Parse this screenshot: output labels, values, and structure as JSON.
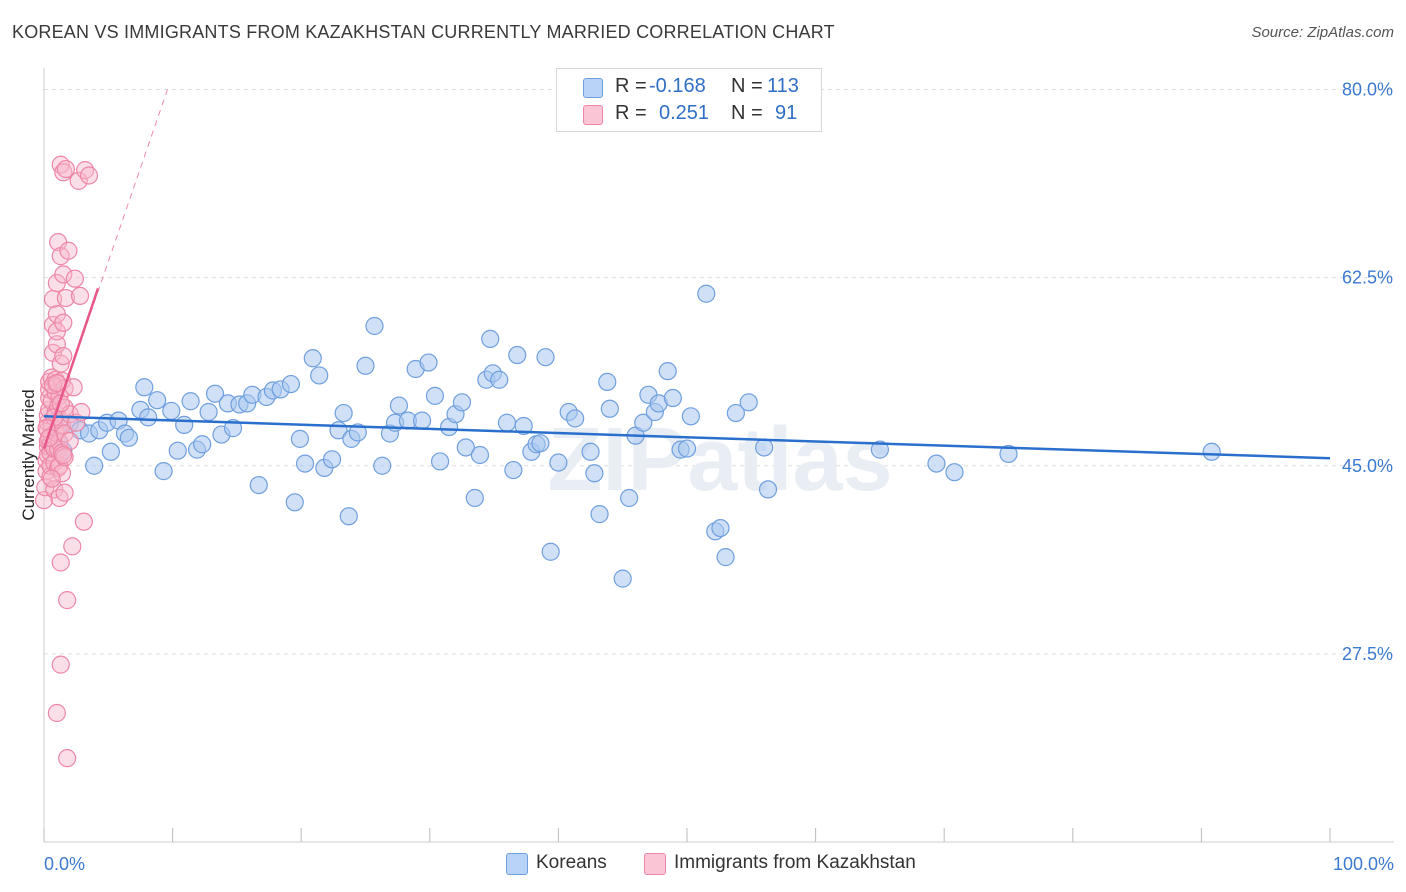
{
  "header": {
    "title": "KOREAN VS IMMIGRANTS FROM KAZAKHSTAN CURRENTLY MARRIED CORRELATION CHART",
    "source": "Source: ZipAtlas.com"
  },
  "watermark": "ZIPatlas",
  "legend": {
    "row1": {
      "r_label": "R =",
      "r_value": "-0.168",
      "n_label": "N =",
      "n_value": "113"
    },
    "row2": {
      "r_label": "R =",
      "r_value": "0.251",
      "n_label": "N =",
      "n_value": "91"
    }
  },
  "bottom_legend": {
    "series1": "Koreans",
    "series2": "Immigrants from Kazakhstan"
  },
  "colors": {
    "blue_fill": "#a9c8f0",
    "blue_stroke": "#6f9fde",
    "blue_line": "#2a6fcc",
    "pink_fill": "#f7b9cc",
    "pink_stroke": "#ee86a6",
    "pink_line": "#e8578a",
    "tick_label": "#3c7ad0",
    "grid": "#dddddd"
  },
  "chart_data": {
    "type": "scatter",
    "title": "KOREAN VS IMMIGRANTS FROM KAZAKHSTAN CURRENTLY MARRIED CORRELATION CHART",
    "xlabel": "",
    "ylabel": "Currently Married",
    "xlim": [
      0,
      100
    ],
    "ylim": [
      10,
      82
    ],
    "x_tick_labels": [
      "0.0%",
      "100.0%"
    ],
    "y_ticks": [
      27.5,
      45.0,
      62.5,
      80.0
    ],
    "y_tick_labels": [
      "27.5%",
      "45.0%",
      "62.5%",
      "80.0%"
    ],
    "grid": true,
    "legend_position": "top-center",
    "series": [
      {
        "name": "Koreans",
        "color": "#a9c8f0",
        "r": -0.168,
        "n": 113,
        "trend": {
          "x": [
            0,
            100
          ],
          "y": [
            49.6,
            45.7
          ],
          "style": "solid"
        },
        "points": [
          [
            0.8,
            46.9
          ],
          [
            1.0,
            46.6
          ],
          [
            1.2,
            47.1
          ],
          [
            1.5,
            46.4
          ],
          [
            2.0,
            48.9
          ],
          [
            2.8,
            48.3
          ],
          [
            3.5,
            48.0
          ],
          [
            3.9,
            45.0
          ],
          [
            4.3,
            48.3
          ],
          [
            4.9,
            49.0
          ],
          [
            5.2,
            46.3
          ],
          [
            5.8,
            49.2
          ],
          [
            6.3,
            48.0
          ],
          [
            6.6,
            47.6
          ],
          [
            7.5,
            50.2
          ],
          [
            7.8,
            52.3
          ],
          [
            8.1,
            49.5
          ],
          [
            8.8,
            51.1
          ],
          [
            9.3,
            44.5
          ],
          [
            9.9,
            50.1
          ],
          [
            10.4,
            46.4
          ],
          [
            10.9,
            48.8
          ],
          [
            11.4,
            51.0
          ],
          [
            11.9,
            46.5
          ],
          [
            12.3,
            47.0
          ],
          [
            12.8,
            50.0
          ],
          [
            13.3,
            51.7
          ],
          [
            13.8,
            47.9
          ],
          [
            14.3,
            50.8
          ],
          [
            14.7,
            48.5
          ],
          [
            15.2,
            50.7
          ],
          [
            15.8,
            50.8
          ],
          [
            16.2,
            51.6
          ],
          [
            16.7,
            43.2
          ],
          [
            17.3,
            51.4
          ],
          [
            17.8,
            52.0
          ],
          [
            18.4,
            52.1
          ],
          [
            19.2,
            52.6
          ],
          [
            19.5,
            41.6
          ],
          [
            19.9,
            47.5
          ],
          [
            20.3,
            45.2
          ],
          [
            20.9,
            55.0
          ],
          [
            21.4,
            53.4
          ],
          [
            21.8,
            44.8
          ],
          [
            22.4,
            45.6
          ],
          [
            22.9,
            48.3
          ],
          [
            23.3,
            49.9
          ],
          [
            23.7,
            40.3
          ],
          [
            23.9,
            47.5
          ],
          [
            24.4,
            48.1
          ],
          [
            25.0,
            54.3
          ],
          [
            25.7,
            58.0
          ],
          [
            26.3,
            45.0
          ],
          [
            26.9,
            48.0
          ],
          [
            27.3,
            49.0
          ],
          [
            27.6,
            50.6
          ],
          [
            28.3,
            49.2
          ],
          [
            28.9,
            54.0
          ],
          [
            29.4,
            49.2
          ],
          [
            29.9,
            54.6
          ],
          [
            30.4,
            51.5
          ],
          [
            30.8,
            45.4
          ],
          [
            31.5,
            48.6
          ],
          [
            32.0,
            49.8
          ],
          [
            32.5,
            50.9
          ],
          [
            32.8,
            46.7
          ],
          [
            33.5,
            42.0
          ],
          [
            33.9,
            46.0
          ],
          [
            34.4,
            53.0
          ],
          [
            34.7,
            56.8
          ],
          [
            34.9,
            53.6
          ],
          [
            35.4,
            53.0
          ],
          [
            36.0,
            49.0
          ],
          [
            36.5,
            44.6
          ],
          [
            36.8,
            55.3
          ],
          [
            37.3,
            48.7
          ],
          [
            37.9,
            46.3
          ],
          [
            38.3,
            47.0
          ],
          [
            38.6,
            47.1
          ],
          [
            39.0,
            55.1
          ],
          [
            39.4,
            37.0
          ],
          [
            40.0,
            45.3
          ],
          [
            40.8,
            50.0
          ],
          [
            41.3,
            49.4
          ],
          [
            42.5,
            46.3
          ],
          [
            42.8,
            44.3
          ],
          [
            43.2,
            40.5
          ],
          [
            43.8,
            52.8
          ],
          [
            44.0,
            50.3
          ],
          [
            45.0,
            34.5
          ],
          [
            45.5,
            42.0
          ],
          [
            46.0,
            47.8
          ],
          [
            46.6,
            49.0
          ],
          [
            47.0,
            51.6
          ],
          [
            47.5,
            50.0
          ],
          [
            47.8,
            50.8
          ],
          [
            48.5,
            53.8
          ],
          [
            48.9,
            51.3
          ],
          [
            49.5,
            46.5
          ],
          [
            50.0,
            46.6
          ],
          [
            50.3,
            49.6
          ],
          [
            51.5,
            61.0
          ],
          [
            52.2,
            38.9
          ],
          [
            52.6,
            39.2
          ],
          [
            53.0,
            36.5
          ],
          [
            53.8,
            49.9
          ],
          [
            54.8,
            50.9
          ],
          [
            56.0,
            46.7
          ],
          [
            56.3,
            42.8
          ],
          [
            65.0,
            46.5
          ],
          [
            69.4,
            45.2
          ],
          [
            70.8,
            44.4
          ],
          [
            75.0,
            46.1
          ],
          [
            90.8,
            46.3
          ]
        ]
      },
      {
        "name": "Immigrants from Kazakhstan",
        "color": "#f7b9cc",
        "r": 0.251,
        "n": 91,
        "trend": {
          "x": [
            0,
            4.2
          ],
          "y": [
            46.6,
            61.5
          ],
          "style": "solid",
          "dashed_extension": {
            "x": [
              0,
              9.6
            ],
            "y": [
              46.6,
              80.0
            ]
          }
        },
        "points": [
          [
            0.0,
            41.8
          ],
          [
            0.1,
            43.0
          ],
          [
            0.2,
            44.5
          ],
          [
            0.2,
            45.5
          ],
          [
            0.3,
            46.0
          ],
          [
            0.3,
            46.8
          ],
          [
            0.3,
            47.3
          ],
          [
            0.3,
            48.3
          ],
          [
            0.3,
            49.0
          ],
          [
            0.3,
            49.7
          ],
          [
            0.4,
            50.2
          ],
          [
            0.4,
            51.3
          ],
          [
            0.4,
            52.1
          ],
          [
            0.4,
            52.8
          ],
          [
            0.5,
            44.0
          ],
          [
            0.5,
            45.0
          ],
          [
            0.5,
            46.2
          ],
          [
            0.5,
            47.0
          ],
          [
            0.6,
            47.8
          ],
          [
            0.6,
            48.8
          ],
          [
            0.6,
            51.0
          ],
          [
            0.6,
            53.2
          ],
          [
            0.7,
            55.5
          ],
          [
            0.7,
            58.1
          ],
          [
            0.7,
            60.5
          ],
          [
            0.8,
            42.8
          ],
          [
            0.8,
            45.3
          ],
          [
            0.8,
            46.6
          ],
          [
            0.9,
            48.1
          ],
          [
            0.9,
            49.9
          ],
          [
            0.9,
            51.8
          ],
          [
            0.9,
            53.0
          ],
          [
            1.0,
            56.3
          ],
          [
            1.0,
            57.5
          ],
          [
            1.0,
            59.1
          ],
          [
            1.0,
            62.0
          ],
          [
            1.1,
            44.8
          ],
          [
            1.1,
            46.5
          ],
          [
            1.1,
            48.3
          ],
          [
            1.1,
            50.5
          ],
          [
            1.1,
            52.6
          ],
          [
            1.1,
            65.8
          ],
          [
            1.2,
            42.0
          ],
          [
            1.2,
            45.0
          ],
          [
            1.2,
            47.2
          ],
          [
            1.2,
            49.3
          ],
          [
            1.2,
            51.5
          ],
          [
            1.3,
            36.0
          ],
          [
            1.3,
            54.5
          ],
          [
            1.3,
            64.5
          ],
          [
            1.3,
            73.0
          ],
          [
            1.3,
            26.5
          ],
          [
            1.4,
            44.3
          ],
          [
            1.4,
            46.2
          ],
          [
            1.4,
            48.8
          ],
          [
            1.4,
            52.9
          ],
          [
            1.5,
            55.2
          ],
          [
            1.5,
            58.3
          ],
          [
            1.5,
            62.8
          ],
          [
            1.5,
            72.3
          ],
          [
            1.6,
            42.5
          ],
          [
            1.6,
            45.8
          ],
          [
            1.6,
            48.0
          ],
          [
            1.6,
            50.4
          ],
          [
            1.6,
            52.2
          ],
          [
            1.7,
            60.6
          ],
          [
            1.7,
            72.6
          ],
          [
            1.8,
            17.8
          ],
          [
            1.8,
            32.5
          ],
          [
            1.9,
            65.0
          ],
          [
            2.0,
            47.3
          ],
          [
            2.0,
            49.8
          ],
          [
            2.2,
            37.5
          ],
          [
            2.3,
            52.3
          ],
          [
            2.4,
            62.4
          ],
          [
            2.5,
            49.0
          ],
          [
            2.7,
            71.5
          ],
          [
            2.8,
            60.8
          ],
          [
            2.9,
            50.0
          ],
          [
            3.1,
            39.8
          ],
          [
            3.2,
            72.5
          ],
          [
            3.5,
            72.0
          ],
          [
            0.6,
            43.8
          ],
          [
            0.8,
            49.5
          ],
          [
            1.0,
            22.0
          ],
          [
            1.3,
            50.8
          ],
          [
            1.5,
            46.0
          ],
          [
            0.2,
            48.5
          ],
          [
            0.7,
            52.5
          ],
          [
            1.0,
            52.7
          ],
          [
            0.4,
            47.6
          ]
        ]
      }
    ]
  }
}
